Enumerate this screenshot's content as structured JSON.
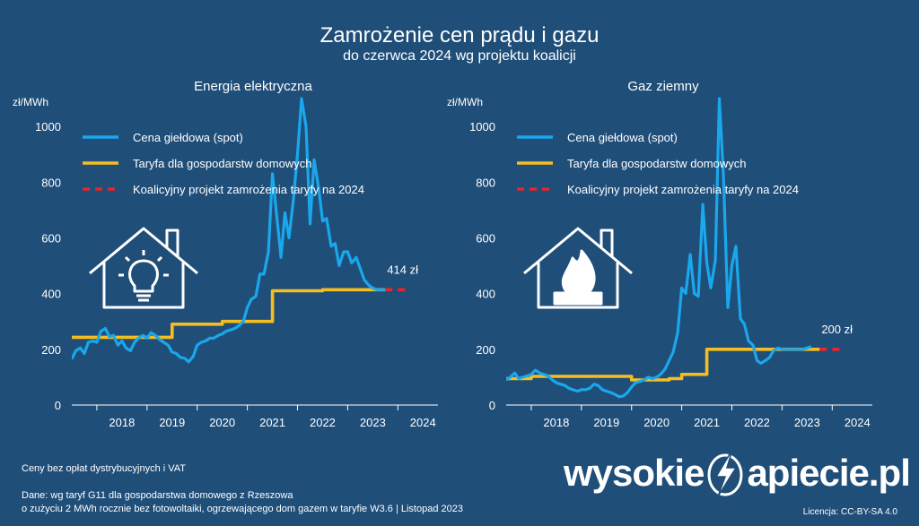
{
  "header": {
    "title": "Zamrożenie cen prądu i gazu",
    "subtitle": "do czerwca 2024 wg projektu koalicji"
  },
  "colors": {
    "background": "#1f4e79",
    "spot": "#1aa7ec",
    "tariff": "#f5bd1f",
    "freeze": "#e8242c"
  },
  "legend": {
    "spot": "Cena giełdowa (spot)",
    "tariff": "Taryfa dla gospodarstw domowych",
    "freeze": "Koalicyjny projekt zamrożenia taryfy na 2024"
  },
  "chart_data": [
    {
      "type": "line",
      "title": "Energia elektryczna",
      "ylabel": "zł/MWh",
      "ylim": [
        0,
        1100
      ],
      "yticks": [
        0,
        200,
        400,
        600,
        800,
        1000
      ],
      "xlim": [
        2017.5,
        2024.8
      ],
      "xticks": [
        "2018",
        "2019",
        "2020",
        "2021",
        "2022",
        "2023",
        "2024"
      ],
      "icon": "house-lightbulb-icon",
      "annotation": "414 zł",
      "series": [
        {
          "name": "Cena giełdowa (spot)",
          "x": [
            2017.5,
            2017.58,
            2017.67,
            2017.75,
            2017.83,
            2017.92,
            2018.0,
            2018.08,
            2018.17,
            2018.25,
            2018.33,
            2018.42,
            2018.5,
            2018.58,
            2018.67,
            2018.75,
            2018.83,
            2018.92,
            2019.0,
            2019.08,
            2019.17,
            2019.25,
            2019.33,
            2019.42,
            2019.5,
            2019.58,
            2019.67,
            2019.75,
            2019.83,
            2019.92,
            2020.0,
            2020.08,
            2020.17,
            2020.25,
            2020.33,
            2020.42,
            2020.5,
            2020.58,
            2020.67,
            2020.75,
            2020.83,
            2020.92,
            2021.0,
            2021.08,
            2021.17,
            2021.25,
            2021.33,
            2021.42,
            2021.5,
            2021.58,
            2021.67,
            2021.75,
            2021.83,
            2021.92,
            2022.0,
            2022.08,
            2022.17,
            2022.25,
            2022.33,
            2022.42,
            2022.5,
            2022.58,
            2022.67,
            2022.75,
            2022.83,
            2022.92,
            2023.0,
            2023.08,
            2023.17,
            2023.25,
            2023.33,
            2023.42,
            2023.5,
            2023.58,
            2023.67,
            2023.75
          ],
          "y": [
            165,
            195,
            205,
            185,
            225,
            230,
            225,
            265,
            275,
            245,
            250,
            215,
            230,
            205,
            195,
            225,
            240,
            250,
            240,
            260,
            250,
            235,
            225,
            215,
            190,
            185,
            170,
            168,
            155,
            175,
            215,
            225,
            230,
            240,
            240,
            250,
            255,
            265,
            270,
            275,
            285,
            300,
            350,
            380,
            390,
            470,
            470,
            550,
            830,
            690,
            530,
            690,
            600,
            740,
            900,
            1100,
            1000,
            650,
            880,
            780,
            660,
            670,
            570,
            580,
            500,
            550,
            550,
            510,
            530,
            490,
            450,
            430,
            420,
            414,
            414,
            414
          ]
        },
        {
          "name": "Taryfa dla gospodarstw domowych",
          "x": [
            2017.5,
            2019.5,
            2019.5,
            2020.5,
            2020.5,
            2021.5,
            2021.5,
            2022.5,
            2022.5,
            2023.75
          ],
          "y": [
            243,
            243,
            290,
            290,
            300,
            300,
            410,
            410,
            414,
            414
          ]
        },
        {
          "name": "Koalicyjny projekt zamrożenia taryfy na 2024",
          "x": [
            2023.75,
            2024.25
          ],
          "y": [
            414,
            414
          ]
        }
      ]
    },
    {
      "type": "line",
      "title": "Gaz ziemny",
      "ylabel": "zł/MWh",
      "ylim": [
        0,
        1100
      ],
      "yticks": [
        0,
        200,
        400,
        600,
        800,
        1000
      ],
      "xlim": [
        2017.5,
        2024.8
      ],
      "xticks": [
        "2018",
        "2019",
        "2020",
        "2021",
        "2022",
        "2023",
        "2024"
      ],
      "icon": "house-flame-icon",
      "annotation": "200 zł",
      "series": [
        {
          "name": "Cena giełdowa (spot)",
          "x": [
            2017.5,
            2017.58,
            2017.67,
            2017.75,
            2017.83,
            2017.92,
            2018.0,
            2018.08,
            2018.17,
            2018.25,
            2018.33,
            2018.42,
            2018.5,
            2018.58,
            2018.67,
            2018.75,
            2018.83,
            2018.92,
            2019.0,
            2019.08,
            2019.17,
            2019.25,
            2019.33,
            2019.42,
            2019.5,
            2019.58,
            2019.67,
            2019.75,
            2019.83,
            2019.92,
            2020.0,
            2020.08,
            2020.17,
            2020.25,
            2020.33,
            2020.42,
            2020.5,
            2020.58,
            2020.67,
            2020.75,
            2020.83,
            2020.92,
            2021.0,
            2021.08,
            2021.17,
            2021.25,
            2021.33,
            2021.42,
            2021.5,
            2021.58,
            2021.67,
            2021.75,
            2021.83,
            2021.92,
            2022.0,
            2022.08,
            2022.17,
            2022.25,
            2022.33,
            2022.42,
            2022.5,
            2022.58,
            2022.67,
            2022.75,
            2022.83,
            2022.92,
            2023.0,
            2023.08,
            2023.17,
            2023.25,
            2023.33,
            2023.42,
            2023.5,
            2023.58
          ],
          "y": [
            90,
            100,
            115,
            95,
            100,
            105,
            110,
            125,
            115,
            110,
            105,
            90,
            80,
            75,
            70,
            60,
            55,
            50,
            55,
            55,
            60,
            75,
            70,
            55,
            50,
            45,
            38,
            30,
            32,
            45,
            65,
            80,
            85,
            90,
            100,
            95,
            100,
            110,
            130,
            160,
            190,
            260,
            420,
            400,
            540,
            400,
            390,
            720,
            510,
            420,
            520,
            1100,
            830,
            350,
            500,
            570,
            310,
            290,
            230,
            215,
            160,
            150,
            160,
            170,
            195,
            205,
            200,
            200,
            200,
            200,
            200,
            200,
            205,
            210
          ]
        },
        {
          "name": "Taryfa dla gospodarstw domowych",
          "x": [
            2017.5,
            2018.0,
            2018.0,
            2020.0,
            2020.0,
            2020.75,
            2020.75,
            2021.0,
            2021.0,
            2021.5,
            2021.5,
            2023.75
          ],
          "y": [
            95,
            95,
            103,
            103,
            90,
            90,
            95,
            95,
            110,
            110,
            200,
            200
          ]
        },
        {
          "name": "Koalicyjny projekt zamrożenia taryfy na 2024",
          "x": [
            2023.75,
            2024.25
          ],
          "y": [
            200,
            200
          ]
        }
      ]
    }
  ],
  "footer": {
    "note1": "Ceny bez opłat dystrybucyjnych i VAT",
    "note2": "Dane: wg taryf G11 dla gospodarstwa domowego z Rzeszowa",
    "note3": "o zużyciu 2 MWh rocznie bez fotowoltaiki, ogrzewającego dom gazem w taryfie W3.6  |  Listopad  2023",
    "brand_left": "wysokie",
    "brand_right": "apiecie.pl",
    "license": "Licencja: CC-BY-SA 4.0"
  }
}
